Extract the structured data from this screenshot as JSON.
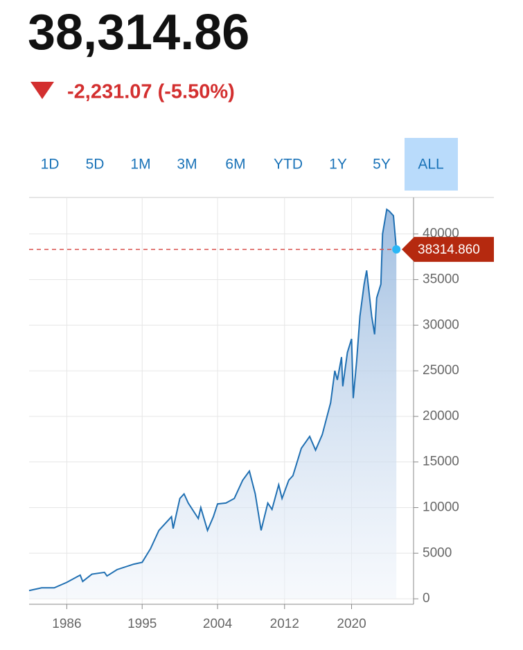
{
  "header": {
    "price": "38,314.86",
    "change": "-2,231.07 (-5.50%)"
  },
  "range_buttons": {
    "labels": [
      "1D",
      "5D",
      "1M",
      "3M",
      "6M",
      "YTD",
      "1Y",
      "5Y",
      "ALL"
    ],
    "selected_index": 8
  },
  "chart_data": {
    "type": "area",
    "x": [
      1981.5,
      1983,
      1984.5,
      1986,
      1987.6,
      1987.9,
      1989,
      1990.5,
      1990.8,
      1992,
      1994,
      1995,
      1996,
      1997,
      1998.5,
      1998.7,
      1999.5,
      2000,
      2000.5,
      2001.7,
      2002,
      2002.8,
      2003.5,
      2004,
      2005,
      2006,
      2007,
      2007.8,
      2008.5,
      2009.2,
      2010,
      2010.5,
      2011.3,
      2011.7,
      2012.5,
      2013,
      2014,
      2015,
      2015.7,
      2016.5,
      2017.5,
      2018,
      2018.3,
      2018.8,
      2018.95,
      2019.5,
      2020,
      2020.2,
      2020.6,
      2021,
      2021.5,
      2021.8,
      2022.4,
      2022.75,
      2023,
      2023.5,
      2023.7,
      2024.2,
      2024.5,
      2025.0,
      2025.35
    ],
    "values": [
      900,
      1200,
      1200,
      1800,
      2600,
      1900,
      2700,
      2900,
      2500,
      3200,
      3800,
      4000,
      5500,
      7500,
      9000,
      7700,
      11000,
      11500,
      10500,
      8800,
      10000,
      7500,
      9000,
      10400,
      10500,
      11000,
      13000,
      14000,
      11500,
      7500,
      10500,
      9800,
      12500,
      11000,
      13000,
      13500,
      16500,
      17800,
      16300,
      18000,
      21500,
      25000,
      24000,
      26500,
      23300,
      27000,
      28500,
      22000,
      26000,
      31000,
      34500,
      36000,
      31000,
      29000,
      33000,
      34500,
      40000,
      42700,
      42500,
      42000,
      38314.86
    ],
    "color": "#1f6fb2",
    "current": {
      "value": 38314.86,
      "label": "38314.860"
    },
    "xlim": [
      1981.5,
      2027.4
    ],
    "xticks": [
      1986,
      1995,
      2004,
      2012,
      2020
    ],
    "ylim": [
      -600,
      44000
    ],
    "yticks": [
      0,
      5000,
      10000,
      15000,
      20000,
      25000,
      30000,
      35000,
      40000
    ],
    "grid": true
  }
}
